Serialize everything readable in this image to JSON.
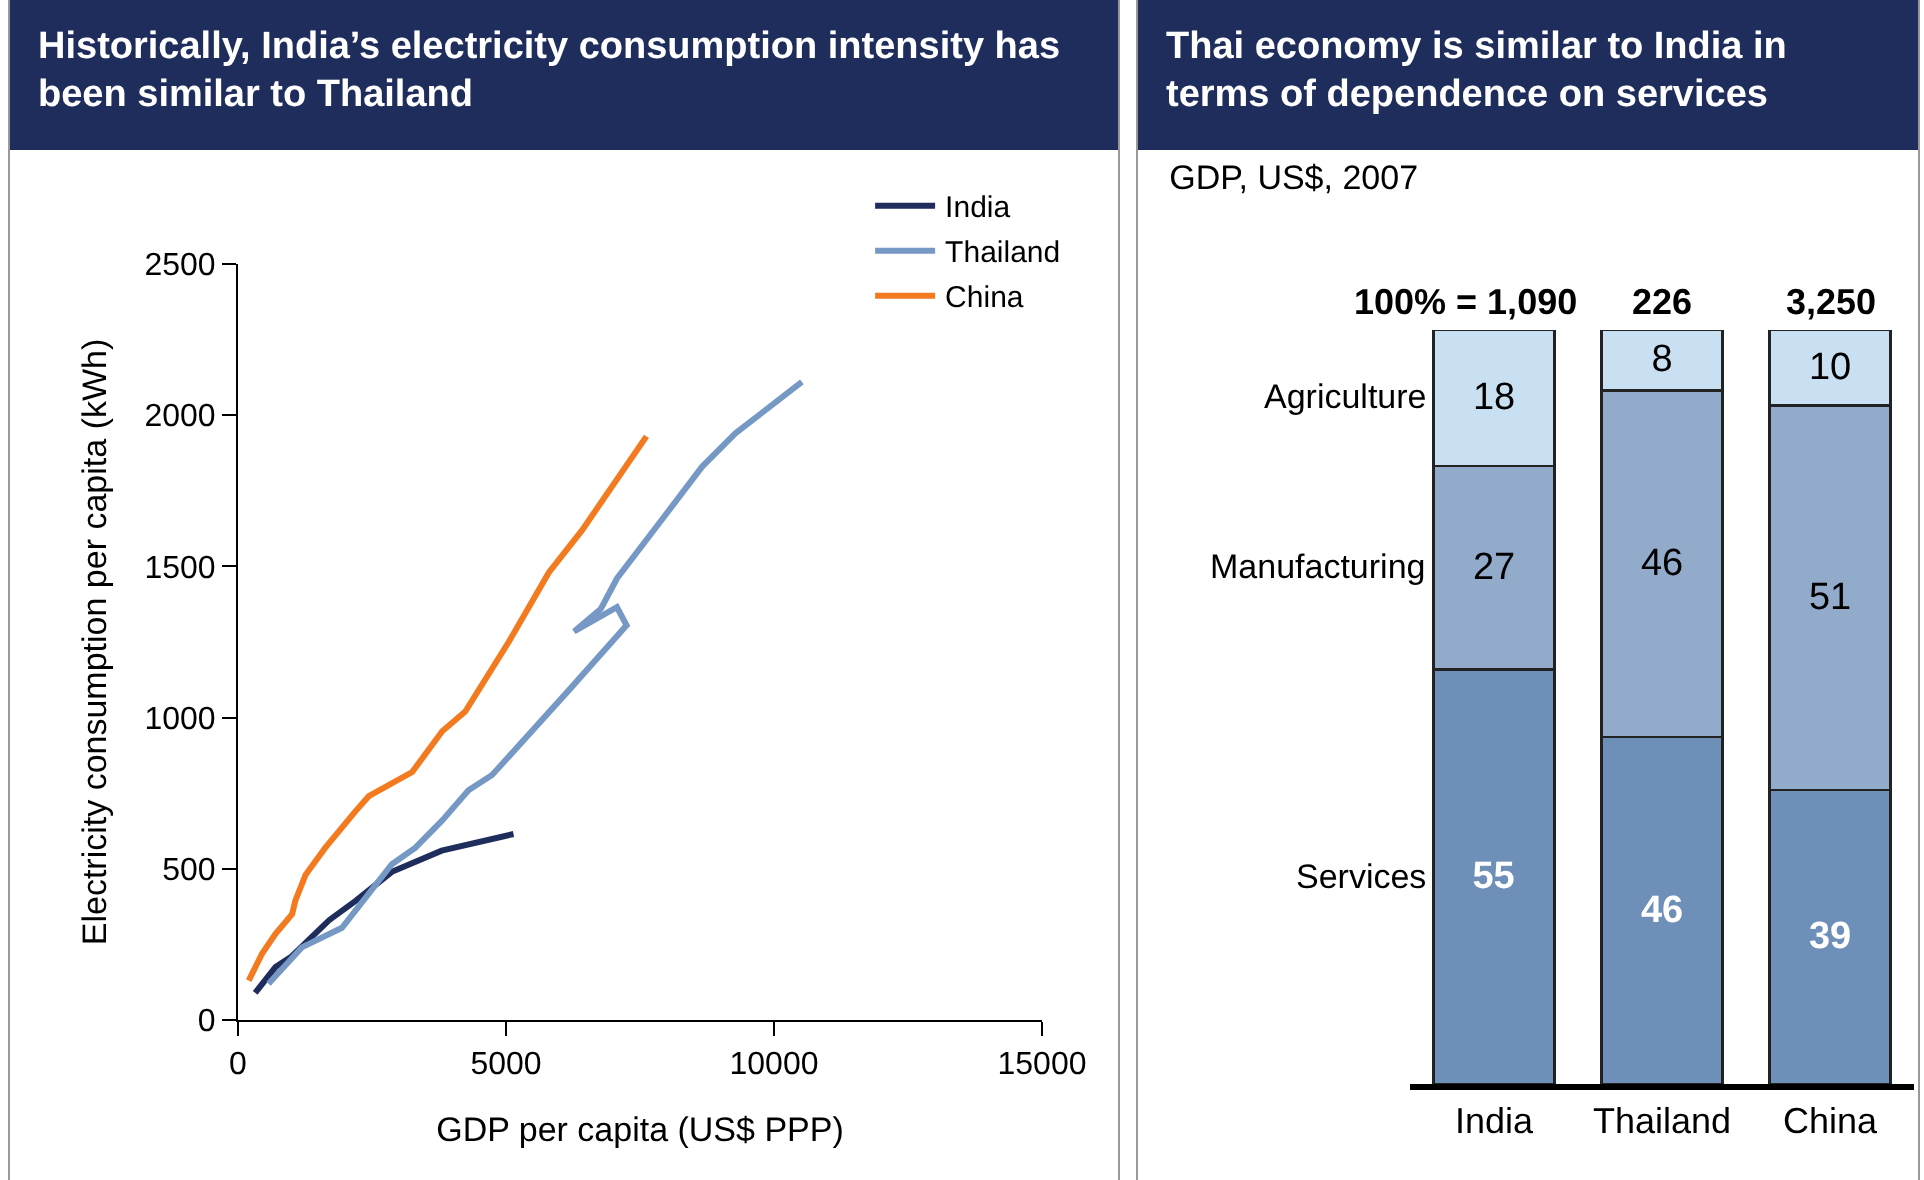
{
  "chart_data": [
    {
      "type": "line",
      "title": "Historically, India’s electricity consumption intensity has been similar to Thailand",
      "xlabel": "GDP per capita (US$ PPP)",
      "ylabel": "Electricity consumption per capita (kWh)",
      "xlim": [
        0,
        15000
      ],
      "xticks": [
        0,
        5000,
        10000,
        15000
      ],
      "ylim": [
        0,
        2500
      ],
      "yticks": [
        0,
        500,
        1000,
        1500,
        2000,
        2500
      ],
      "grid": false,
      "legend": "top right",
      "series": [
        {
          "name": "India",
          "color": "#1f2d5c",
          "x": [
            320,
            700,
            1000,
            1700,
            2200,
            2870,
            3800,
            5140
          ],
          "values": [
            90,
            175,
            210,
            330,
            395,
            490,
            560,
            615
          ]
        },
        {
          "name": "Thailand",
          "color": "#7698c4",
          "x": [
            570,
            1190,
            1940,
            2870,
            3310,
            3810,
            4300,
            4740,
            6170,
            7250,
            7070,
            6270,
            6770,
            7070,
            7910,
            8660,
            9280,
            10520
          ],
          "values": [
            120,
            240,
            305,
            515,
            570,
            660,
            760,
            810,
            1090,
            1305,
            1365,
            1285,
            1360,
            1460,
            1655,
            1830,
            1940,
            2110
          ]
        },
        {
          "name": "China",
          "color": "#f47a20",
          "x": [
            200,
            450,
            700,
            1010,
            1070,
            1260,
            1630,
            2190,
            2440,
            3250,
            3810,
            4240,
            5050,
            5800,
            6420,
            7620
          ],
          "values": [
            130,
            220,
            285,
            350,
            395,
            480,
            570,
            690,
            740,
            820,
            955,
            1020,
            1250,
            1480,
            1620,
            1930
          ]
        }
      ]
    },
    {
      "type": "bar",
      "title": "Thai economy is similar to India in terms of dependence on services",
      "subtitle": "GDP, US$, 2007",
      "stacked": true,
      "categories": [
        "India",
        "Thailand",
        "China"
      ],
      "ylim": [
        0,
        100
      ],
      "tick_labels": "x",
      "data_labels": true,
      "annotations": [
        {
          "text": "100% = 1,090",
          "x": "India",
          "y": 100
        },
        {
          "text": "226",
          "x": "Thailand",
          "y": 100
        },
        {
          "text": "3,250",
          "x": "China",
          "y": 100
        }
      ],
      "series": [
        {
          "name": "Services",
          "color": "#6e8fb8",
          "values": [
            55,
            46,
            39
          ]
        },
        {
          "name": "Manufacturing",
          "color": "#93abca",
          "values": [
            27,
            46,
            51
          ]
        },
        {
          "name": "Agriculture",
          "color": "#c9dff2",
          "values": [
            18,
            8,
            10
          ]
        }
      ]
    }
  ]
}
